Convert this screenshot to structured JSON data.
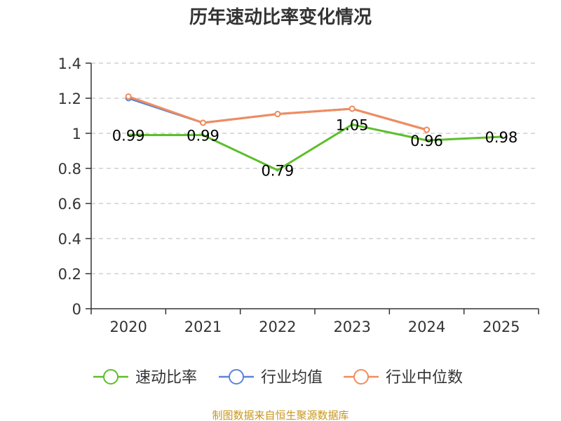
{
  "chart_data": {
    "type": "line",
    "title": "历年速动比率变化情况",
    "categories": [
      "2020",
      "2021",
      "2022",
      "2023",
      "2024",
      "2025"
    ],
    "ylim": [
      0,
      1.4
    ],
    "yticks": [
      "0",
      "0.2",
      "0.4",
      "0.6",
      "0.8",
      "1",
      "1.2",
      "1.4"
    ],
    "grid": true,
    "legend_position": "bottom",
    "series": [
      {
        "name": "速动比率",
        "color": "#5bbf2a",
        "values": [
          0.99,
          0.99,
          0.79,
          1.05,
          0.96,
          0.98
        ],
        "labels": [
          "0.99",
          "0.99",
          "0.79",
          "1.05",
          "0.96",
          "0.98"
        ]
      },
      {
        "name": "行业均值",
        "color": "#5b85d6",
        "values": [
          1.2,
          1.06,
          1.11,
          1.14,
          1.02,
          null
        ]
      },
      {
        "name": "行业中位数",
        "color": "#f28c5c",
        "values": [
          1.21,
          1.06,
          1.11,
          1.14,
          1.02,
          null
        ]
      }
    ],
    "source": "制图数据来自恒生聚源数据库"
  }
}
